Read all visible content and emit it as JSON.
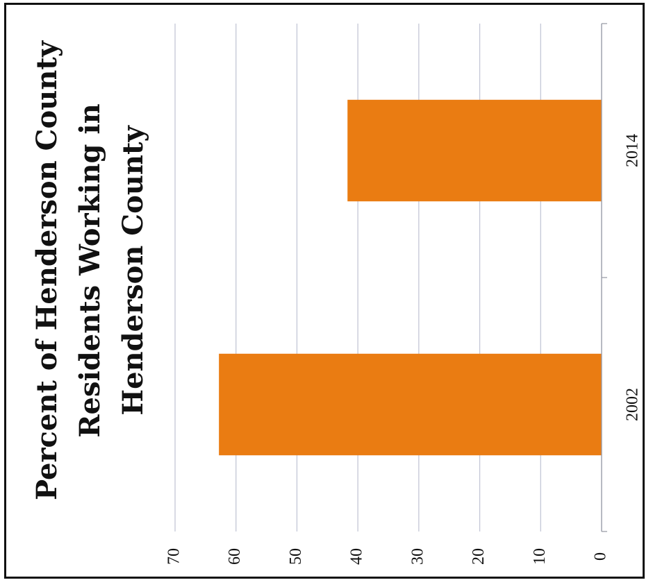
{
  "chart_data": {
    "type": "bar",
    "orientation": "horizontal",
    "title": "Percent of Henderson County Residents Working in Henderson County",
    "title_lines": [
      "Percent of Henderson County",
      "Residents Working in",
      "Henderson County"
    ],
    "categories": [
      "2002",
      "2014"
    ],
    "values": [
      62.8,
      41.7
    ],
    "xlim": [
      0,
      70
    ],
    "ticks": [
      0,
      10,
      20,
      30,
      40,
      50,
      60,
      70
    ],
    "tick_labels": [
      "0",
      "10",
      "20",
      "30",
      "40",
      "50",
      "60",
      "70"
    ],
    "grid": true,
    "bar_color": "#ea7c12",
    "gridline_color": "#c3c7d6",
    "xlabel": "",
    "ylabel": ""
  }
}
